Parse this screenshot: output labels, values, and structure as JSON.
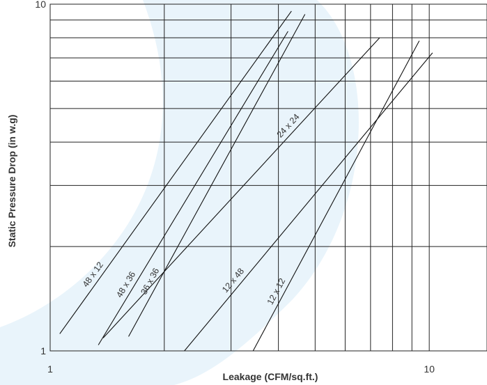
{
  "chart_data": {
    "type": "line",
    "title": "",
    "xlabel": "Leakage (CFM/sq.ft.)",
    "ylabel": "Static Pressure Drop (in w.g)",
    "xscale": "log",
    "yscale": "log",
    "xlim": [
      1,
      14.2
    ],
    "ylim": [
      1,
      10
    ],
    "x_ticks": [
      {
        "value": 1,
        "label": "1"
      },
      {
        "value": 10,
        "label": "10"
      }
    ],
    "y_ticks": [
      {
        "value": 1,
        "label": "1"
      },
      {
        "value": 10,
        "label": "10"
      }
    ],
    "x_gridlines": [
      2,
      3,
      4,
      5,
      6,
      7,
      8,
      9,
      10
    ],
    "y_gridlines": [
      2,
      3,
      4,
      5,
      6,
      7,
      8,
      9
    ],
    "grid": true,
    "background_color": "#e9f4fb",
    "line_color": "#111111",
    "series": [
      {
        "name": "48 x 12",
        "x": [
          1.06,
          4.33
        ],
        "y": [
          1.12,
          9.55
        ]
      },
      {
        "name": "48 x 36",
        "x": [
          1.34,
          4.24
        ],
        "y": [
          1.04,
          8.35
        ]
      },
      {
        "name": "36 x 36",
        "x": [
          1.61,
          4.7
        ],
        "y": [
          1.1,
          9.35
        ]
      },
      {
        "name": "24 x 24",
        "x": [
          1.38,
          7.39
        ],
        "y": [
          1.09,
          7.99
        ]
      },
      {
        "name": "12 x 48",
        "x": [
          2.26,
          10.2
        ],
        "y": [
          1.0,
          7.24
        ]
      },
      {
        "name": "12 x 12",
        "x": [
          3.43,
          9.41
        ],
        "y": [
          1.0,
          7.84
        ]
      }
    ]
  }
}
